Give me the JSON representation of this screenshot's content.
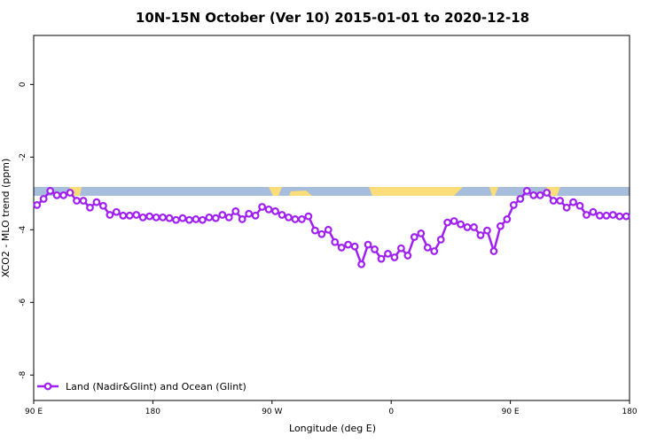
{
  "chart_data": {
    "type": "line",
    "title": "10N-15N October (Ver 10)   2015-01-01 to 2020-12-18",
    "x_label": "Longitude (deg E)",
    "y_label": "XCO2 - MLO trend (ppm)",
    "xlim": [
      90,
      540
    ],
    "ylim": [
      -8.7,
      1.35
    ],
    "xticks": [
      {
        "value": 90,
        "label": "90 E"
      },
      180,
      {
        "value": 270,
        "label": "90 W"
      },
      {
        "value": 360,
        "label": "0"
      },
      {
        "value": 450,
        "label": "90 E"
      },
      {
        "value": 540,
        "label": "180"
      }
    ],
    "yticks": [
      0,
      -2,
      -4,
      -6,
      -8
    ],
    "legend": "bottom-left",
    "x": [
      92.5,
      97.5,
      102.5,
      107.5,
      112.5,
      117.5,
      122.5,
      127.5,
      132.5,
      137.5,
      142.5,
      147.5,
      152.5,
      157.5,
      162.5,
      167.5,
      172.5,
      177.5,
      182.5,
      187.5,
      192.5,
      197.5,
      202.5,
      207.5,
      212.5,
      217.5,
      222.5,
      227.5,
      232.5,
      237.5,
      242.5,
      247.5,
      252.5,
      257.5,
      262.5,
      267.5,
      272.5,
      277.5,
      282.5,
      287.5,
      292.5,
      297.5,
      302.5,
      307.5,
      312.5,
      317.5,
      322.5,
      327.5,
      332.5,
      337.5,
      342.5,
      347.5,
      352.5,
      357.5,
      362.5,
      367.5,
      372.5,
      377.5,
      382.5,
      387.5,
      392.5,
      397.5,
      402.5,
      407.5,
      412.5,
      417.5,
      422.5,
      427.5,
      432.5,
      437.5,
      442.5,
      447.5,
      452.5,
      457.5,
      462.5,
      467.5,
      472.5,
      477.5,
      482.5,
      487.5,
      492.5,
      497.5,
      502.5,
      507.5,
      512.5,
      517.5,
      522.5,
      527.5,
      532.5,
      537.5
    ],
    "series": [
      {
        "name": "Land (Nadir&Glint) and Ocean (Glint)",
        "color": "#a020f0",
        "values": [
          -3.32,
          -3.15,
          -2.93,
          -3.05,
          -3.05,
          -2.98,
          -3.2,
          -3.2,
          -3.39,
          -3.24,
          -3.34,
          -3.59,
          -3.51,
          -3.61,
          -3.61,
          -3.59,
          -3.66,
          -3.63,
          -3.66,
          -3.66,
          -3.68,
          -3.73,
          -3.68,
          -3.73,
          -3.71,
          -3.73,
          -3.66,
          -3.68,
          -3.59,
          -3.66,
          -3.49,
          -3.71,
          -3.56,
          -3.61,
          -3.37,
          -3.44,
          -3.49,
          -3.59,
          -3.66,
          -3.71,
          -3.71,
          -3.63,
          -4.02,
          -4.12,
          -4.0,
          -4.34,
          -4.49,
          -4.41,
          -4.46,
          -4.95,
          -4.41,
          -4.54,
          -4.8,
          -4.66,
          -4.76,
          -4.51,
          -4.71,
          -4.2,
          -4.1,
          -4.49,
          -4.59,
          -4.27,
          -3.8,
          -3.76,
          -3.85,
          -3.93,
          -3.93,
          -4.15,
          -4.02,
          -4.59,
          -3.9,
          -3.71,
          -3.32,
          -3.15,
          -2.93,
          -3.05,
          -3.05,
          -2.98,
          -3.2,
          -3.2,
          -3.39,
          -3.24,
          -3.34,
          -3.59,
          -3.51,
          -3.61,
          -3.61,
          -3.59,
          -3.63,
          -3.63
        ]
      }
    ]
  }
}
